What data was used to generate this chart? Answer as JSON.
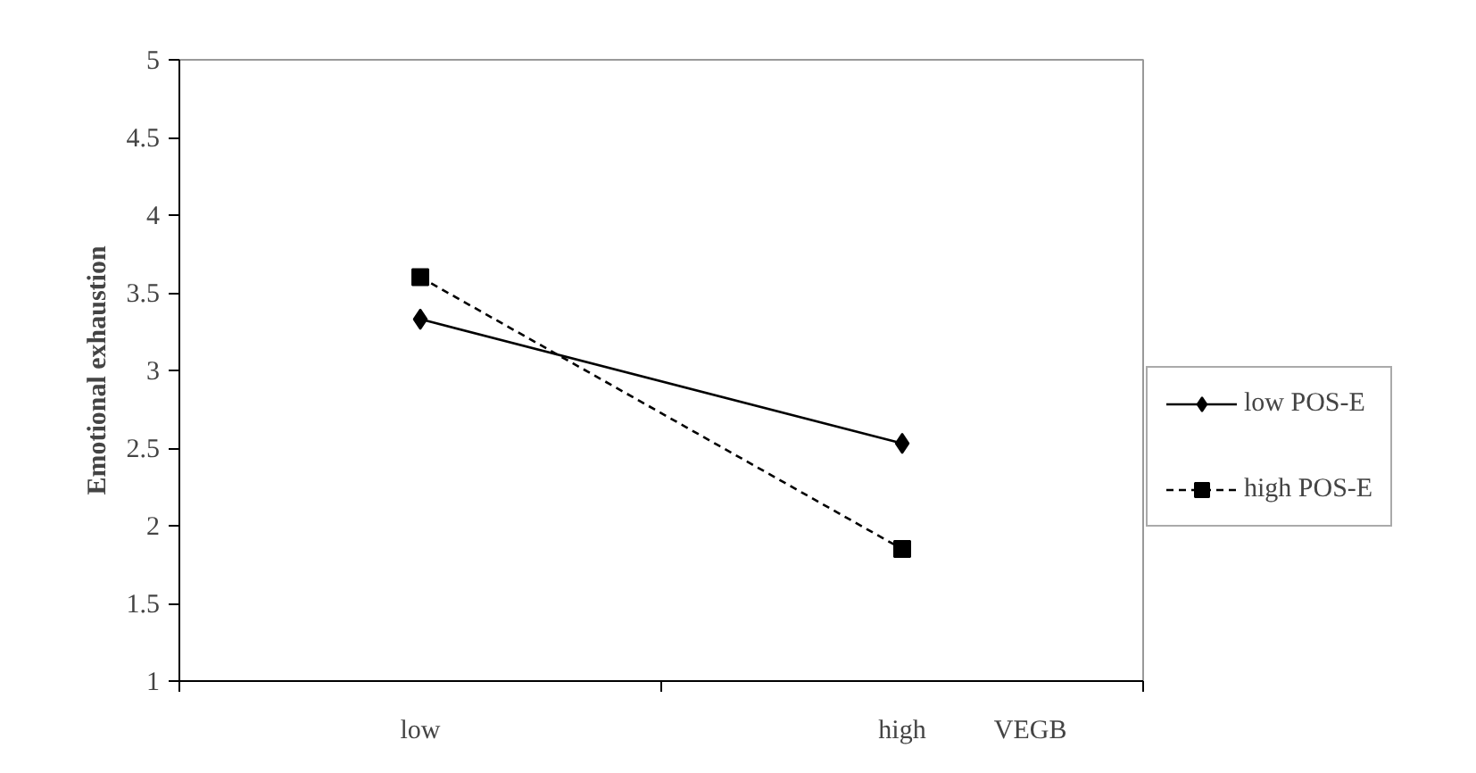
{
  "chart_data": {
    "type": "line",
    "ylabel": "Emotional exhaustion",
    "xlabel": "VEGB",
    "categories": [
      "low",
      "high"
    ],
    "ylim": [
      1,
      5
    ],
    "yticks": [
      1,
      1.5,
      2,
      2.5,
      3,
      3.5,
      4,
      4.5,
      5
    ],
    "grid": false,
    "legend": "right",
    "series": [
      {
        "name": "low POS-E",
        "color": "#000000",
        "values": [
          3.33,
          2.53
        ],
        "marker": "diamond",
        "line_style": "solid"
      },
      {
        "name": "high POS-E",
        "color": "#000000",
        "values": [
          3.6,
          1.85
        ],
        "marker": "square",
        "line_style": "dashed"
      }
    ]
  }
}
